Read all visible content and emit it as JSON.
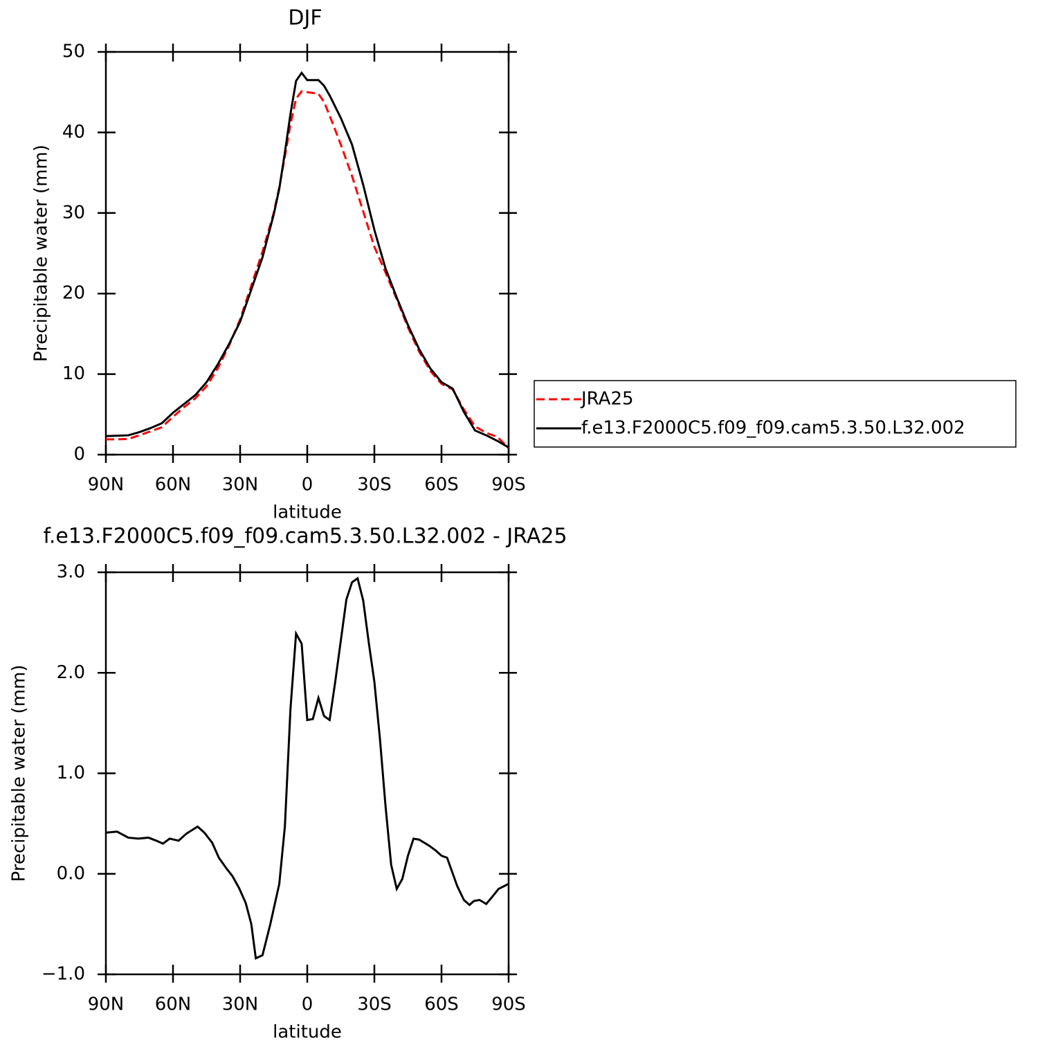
{
  "chart_data": [
    {
      "type": "line",
      "title": "DJF",
      "x_label": "latitude",
      "y_label": "Precipitable water (mm)",
      "x": [
        90,
        85,
        80,
        75,
        70,
        65,
        60,
        55,
        50,
        45,
        40,
        35,
        30,
        25,
        20,
        15,
        12.5,
        10,
        7.5,
        5,
        2.5,
        0,
        -2.5,
        -5,
        -7.5,
        -10,
        -15,
        -20,
        -25,
        -30,
        -35,
        -40,
        -45,
        -50,
        -55,
        -60,
        -65,
        -70,
        -75,
        -80,
        -85,
        -90
      ],
      "series": [
        {
          "name": "JRA25",
          "color": "#ff0000",
          "dash": "dashed",
          "values": [
            1.9,
            1.9,
            1.95,
            2.4,
            2.9,
            3.4,
            4.7,
            5.9,
            7.0,
            8.5,
            10.7,
            13.5,
            16.8,
            21.0,
            25.2,
            30.0,
            33.2,
            37.0,
            41.0,
            44.2,
            45.1,
            45.0,
            44.9,
            44.8,
            43.8,
            42.1,
            38.5,
            34.6,
            30.2,
            25.8,
            22.6,
            19.3,
            15.8,
            12.8,
            10.4,
            8.8,
            8.1,
            5.6,
            3.5,
            2.7,
            2.2,
            0.8
          ]
        },
        {
          "name": "f.e13.F2000C5.f09_f09.cam5.3.50.L32.002",
          "color": "#000000",
          "dash": "solid",
          "values": [
            2.3,
            2.35,
            2.4,
            2.8,
            3.3,
            3.9,
            5.2,
            6.3,
            7.4,
            9.0,
            11.2,
            13.7,
            16.5,
            20.5,
            24.5,
            29.8,
            33.0,
            37.5,
            42.3,
            46.4,
            47.4,
            46.5,
            46.5,
            46.5,
            45.8,
            44.6,
            41.8,
            38.5,
            33.5,
            27.9,
            23.1,
            19.5,
            16.1,
            13.1,
            10.7,
            9.0,
            8.2,
            5.3,
            3.0,
            2.4,
            1.7,
            0.9
          ]
        }
      ],
      "xlim": [
        90,
        -90
      ],
      "xticks": [
        {
          "value": 90,
          "label": "90N"
        },
        {
          "value": 60,
          "label": "60N"
        },
        {
          "value": 30,
          "label": "30N"
        },
        0,
        {
          "value": -30,
          "label": "30S"
        },
        {
          "value": -60,
          "label": "60S"
        },
        {
          "value": -90,
          "label": "90S"
        }
      ],
      "ylim": [
        0,
        50
      ],
      "yticks": [
        0,
        10,
        20,
        30,
        40,
        50
      ],
      "legend": "right"
    },
    {
      "type": "line",
      "title": "f.e13.F2000C5.f09_f09.cam5.3.50.L32.002 - JRA25",
      "x_label": "latitude",
      "y_label": "Precipitable water (mm)",
      "x": [
        90,
        85,
        80,
        75.5,
        71,
        67.5,
        64.5,
        61.5,
        57.5,
        54,
        49,
        46,
        42.5,
        39.5,
        36,
        33.5,
        30.5,
        27.5,
        25,
        23,
        20,
        16.5,
        12.5,
        10,
        7.5,
        5,
        2.5,
        0,
        -2.5,
        -5,
        -7.5,
        -10,
        -12.5,
        -17.5,
        -20,
        -22.5,
        -25,
        -27.5,
        -30,
        -32.5,
        -35,
        -37.5,
        -40,
        -42.5,
        -45,
        -47.5,
        -50,
        -54.5,
        -57.5,
        -60,
        -62.5,
        -67,
        -70,
        -72.5,
        -74.5,
        -77,
        -80,
        -83,
        -85.5,
        -90
      ],
      "values": [
        0.41,
        0.42,
        0.36,
        0.35,
        0.36,
        0.33,
        0.3,
        0.35,
        0.33,
        0.4,
        0.47,
        0.41,
        0.31,
        0.16,
        0.05,
        -0.02,
        -0.14,
        -0.29,
        -0.5,
        -0.84,
        -0.81,
        -0.5,
        -0.1,
        0.47,
        1.64,
        2.39,
        2.29,
        1.53,
        1.54,
        1.75,
        1.57,
        1.53,
        1.91,
        2.73,
        2.9,
        2.94,
        2.72,
        2.3,
        1.91,
        1.34,
        0.67,
        0.09,
        -0.15,
        -0.05,
        0.18,
        0.35,
        0.34,
        0.28,
        0.23,
        0.18,
        0.16,
        -0.12,
        -0.26,
        -0.31,
        -0.27,
        -0.26,
        -0.3,
        -0.22,
        -0.15,
        -0.1
      ],
      "color": "#000000",
      "xlim": [
        90,
        -90
      ],
      "xticks": [
        {
          "value": 90,
          "label": "90N"
        },
        {
          "value": 60,
          "label": "60N"
        },
        {
          "value": 30,
          "label": "30N"
        },
        0,
        {
          "value": -30,
          "label": "30S"
        },
        {
          "value": -60,
          "label": "60S"
        },
        {
          "value": -90,
          "label": "90S"
        }
      ],
      "ylim": [
        -1,
        3
      ],
      "yticks": [
        {
          "value": 3,
          "label": "3.0"
        },
        {
          "value": 2,
          "label": "2.0"
        },
        {
          "value": 1,
          "label": "1.0"
        },
        {
          "value": 0,
          "label": "0.0"
        },
        {
          "value": -1,
          "label": "−1.0"
        }
      ]
    }
  ]
}
